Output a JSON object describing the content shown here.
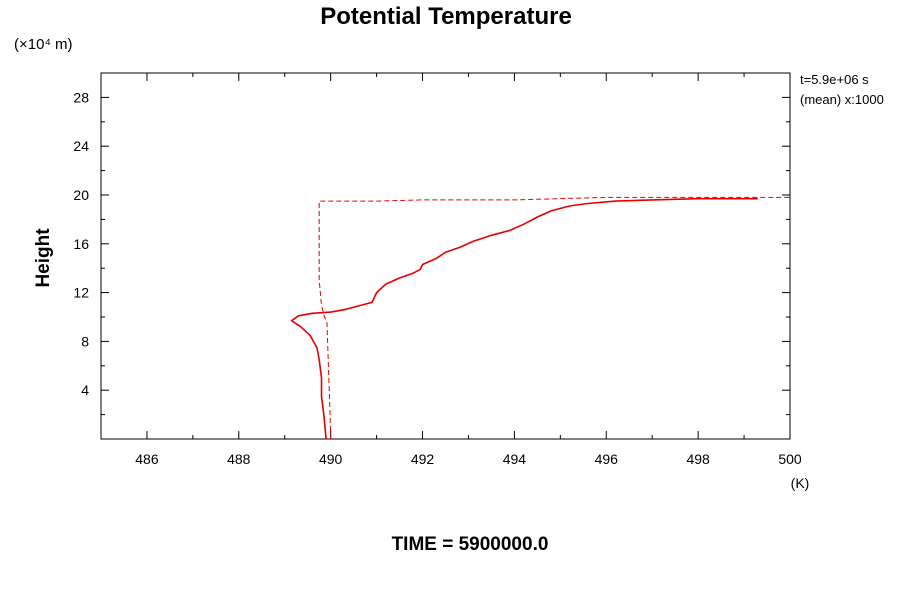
{
  "chart_data": {
    "type": "line",
    "title": "Potential Temperature",
    "ylabel": "Height",
    "y_unit": "(×10⁴ m)",
    "x_unit": "(K)",
    "xlim": [
      485,
      500
    ],
    "ylim": [
      0,
      30
    ],
    "x_ticks": [
      486,
      488,
      490,
      492,
      494,
      496,
      498,
      500
    ],
    "y_ticks": [
      4,
      8,
      12,
      16,
      20,
      24,
      28
    ],
    "grid": false,
    "annotations": [
      "t=5.9e+06 s",
      "(mean) x:1000"
    ],
    "footer": "TIME = 5900000.0",
    "colors": {
      "series": "#e60000",
      "axis": "#000000"
    },
    "series": [
      {
        "style": "solid",
        "points": [
          [
            489.9,
            0
          ],
          [
            489.85,
            2.0
          ],
          [
            489.8,
            3.5
          ],
          [
            489.8,
            5.0
          ],
          [
            489.75,
            6.5
          ],
          [
            489.7,
            7.5
          ],
          [
            489.55,
            8.5
          ],
          [
            489.35,
            9.2
          ],
          [
            489.15,
            9.7
          ],
          [
            489.3,
            10.1
          ],
          [
            489.6,
            10.3
          ],
          [
            490.0,
            10.4
          ],
          [
            490.3,
            10.6
          ],
          [
            490.6,
            10.9
          ],
          [
            490.9,
            11.2
          ],
          [
            491.0,
            12.0
          ],
          [
            491.2,
            12.7
          ],
          [
            491.5,
            13.2
          ],
          [
            491.8,
            13.6
          ],
          [
            491.95,
            13.9
          ],
          [
            492.0,
            14.3
          ],
          [
            492.3,
            14.8
          ],
          [
            492.5,
            15.3
          ],
          [
            492.8,
            15.7
          ],
          [
            493.1,
            16.2
          ],
          [
            493.5,
            16.7
          ],
          [
            493.9,
            17.1
          ],
          [
            494.2,
            17.6
          ],
          [
            494.5,
            18.2
          ],
          [
            494.8,
            18.7
          ],
          [
            495.2,
            19.1
          ],
          [
            495.6,
            19.3
          ],
          [
            496.2,
            19.5
          ],
          [
            497.0,
            19.6
          ],
          [
            498.0,
            19.7
          ],
          [
            499.3,
            19.7
          ]
        ]
      },
      {
        "style": "dashed",
        "points": [
          [
            490.0,
            0
          ],
          [
            489.98,
            3.0
          ],
          [
            489.95,
            6.0
          ],
          [
            489.92,
            9.5
          ],
          [
            489.85,
            10.2
          ],
          [
            489.8,
            11.0
          ],
          [
            489.75,
            13.0
          ],
          [
            489.75,
            16.0
          ],
          [
            489.75,
            19.5
          ],
          [
            491.0,
            19.5
          ],
          [
            492.0,
            19.6
          ],
          [
            494.0,
            19.6
          ],
          [
            496.0,
            19.8
          ],
          [
            498.0,
            19.8
          ],
          [
            500.0,
            19.8
          ]
        ]
      }
    ]
  }
}
